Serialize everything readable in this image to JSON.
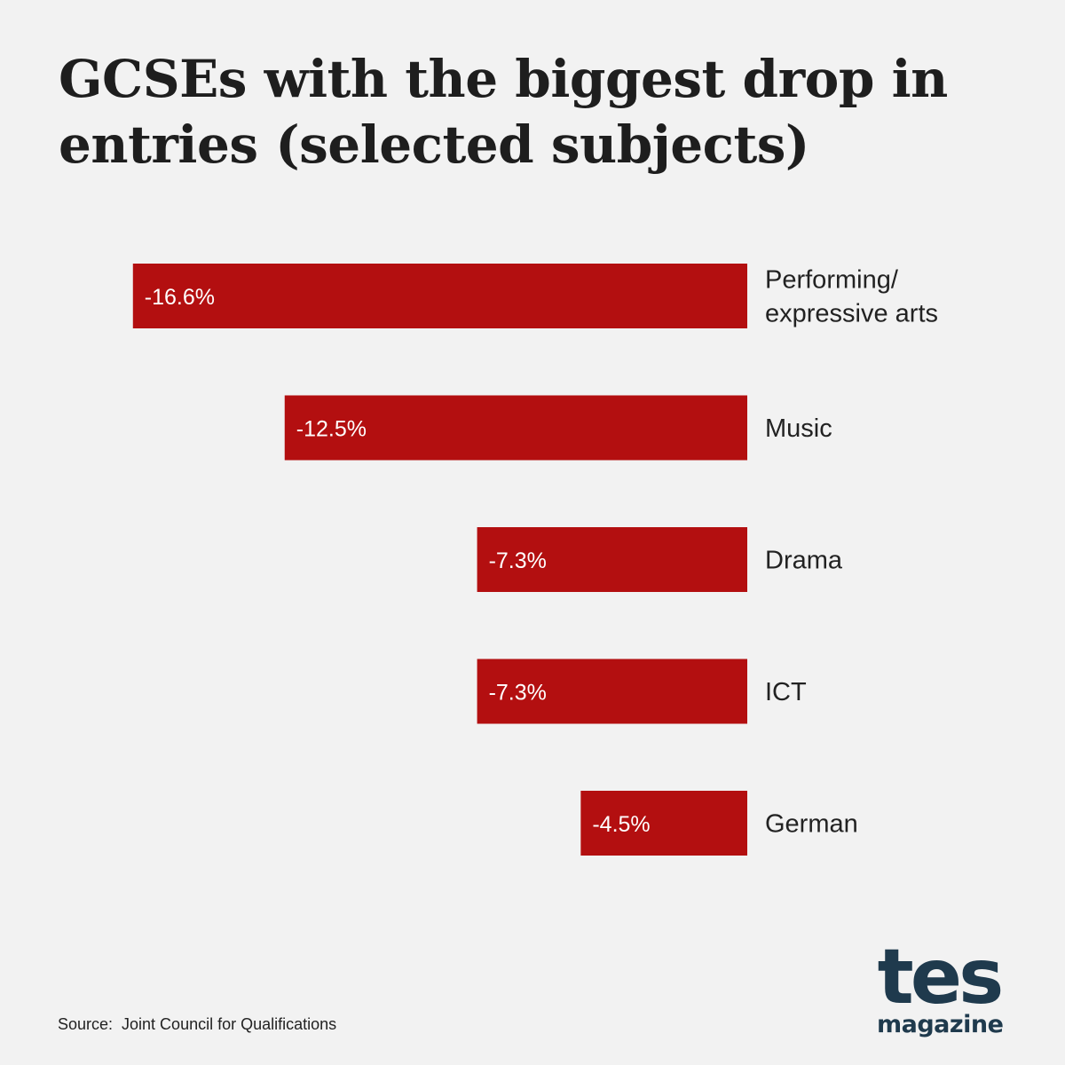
{
  "title": "GCSEs with the biggest drop in entries (selected subjects)",
  "source": "Source:  Joint Council for Qualifications",
  "logo": {
    "main": "tes",
    "sub": "magazine"
  },
  "colors": {
    "bar": "#b30f10",
    "background": "#f2f2f2",
    "label": "#222222",
    "bar_label": "#ffffff"
  },
  "chart_data": {
    "type": "bar",
    "orientation": "horizontal",
    "categories": [
      [
        "Performing/",
        "expressive arts"
      ],
      [
        "Music"
      ],
      [
        "Drama"
      ],
      [
        "ICT"
      ],
      [
        "German"
      ]
    ],
    "values": [
      -16.6,
      -12.5,
      -7.3,
      -7.3,
      -4.5
    ],
    "data_labels": [
      "-16.6%",
      "-12.5%",
      "-7.3%",
      "-7.3%",
      "-4.5%"
    ],
    "unit": "%",
    "title": "GCSEs with the biggest drop in entries (selected subjects)",
    "xlabel": "",
    "ylabel": "",
    "grid": false,
    "legend": "none"
  }
}
